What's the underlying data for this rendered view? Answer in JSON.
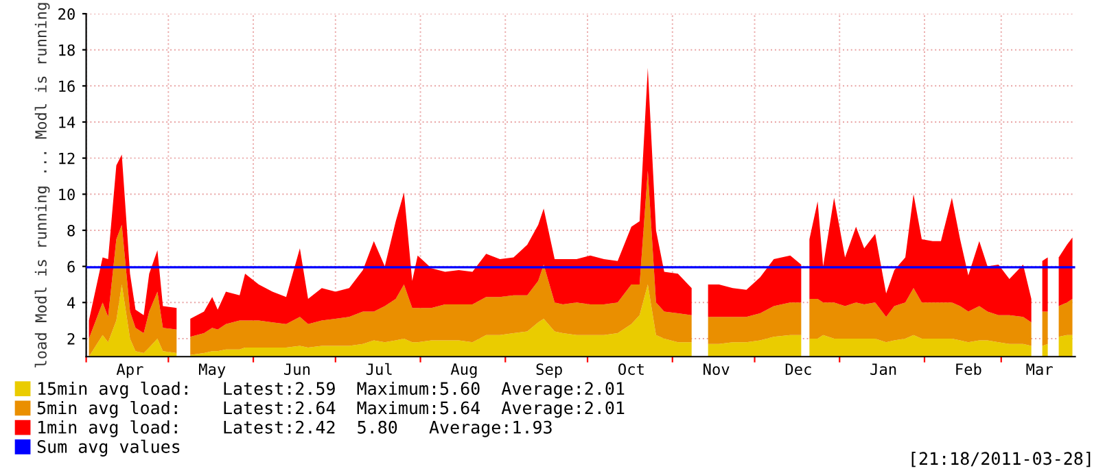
{
  "chart_data": {
    "type": "area",
    "stacked": true,
    "ylabel": "load Modl is running ... Modl is running",
    "x": [
      "2010-04-02",
      "2010-04-07",
      "2010-04-09",
      "2010-04-12",
      "2010-04-14",
      "2010-04-17",
      "2010-04-19",
      "2010-04-22",
      "2010-04-24",
      "2010-04-27",
      "2010-04-29",
      "2010-05-04",
      "2010-05-07",
      "2010-05-09",
      "2010-05-14",
      "2010-05-17",
      "2010-05-19",
      "2010-05-22",
      "2010-05-27",
      "2010-05-29",
      "2010-06-03",
      "2010-06-08",
      "2010-06-13",
      "2010-06-18",
      "2010-06-21",
      "2010-06-26",
      "2010-07-01",
      "2010-07-06",
      "2010-07-11",
      "2010-07-15",
      "2010-07-19",
      "2010-07-23",
      "2010-07-26",
      "2010-07-29",
      "2010-07-31",
      "2010-08-05",
      "2010-08-10",
      "2010-08-15",
      "2010-08-20",
      "2010-08-25",
      "2010-08-30",
      "2010-09-04",
      "2010-09-09",
      "2010-09-13",
      "2010-09-15",
      "2010-09-19",
      "2010-09-22",
      "2010-09-27",
      "2010-10-02",
      "2010-10-07",
      "2010-10-12",
      "2010-10-17",
      "2010-10-20",
      "2010-10-23",
      "2010-10-26",
      "2010-10-29",
      "2010-11-03",
      "2010-11-08",
      "2010-11-09",
      "2010-11-14",
      "2010-11-18",
      "2010-11-23",
      "2010-11-28",
      "2010-12-03",
      "2010-12-08",
      "2010-12-14",
      "2010-12-18",
      "2010-12-20",
      "2010-12-21",
      "2010-12-24",
      "2010-12-26",
      "2010-12-30",
      "2011-01-03",
      "2011-01-07",
      "2011-01-10",
      "2011-01-14",
      "2011-01-18",
      "2011-01-21",
      "2011-01-25",
      "2011-01-28",
      "2011-01-31",
      "2011-02-04",
      "2011-02-07",
      "2011-02-11",
      "2011-02-14",
      "2011-02-17",
      "2011-02-21",
      "2011-02-24",
      "2011-02-28",
      "2011-03-04",
      "2011-03-09",
      "2011-03-12",
      "2011-03-14",
      "2011-03-16",
      "2011-03-18",
      "2011-03-20",
      "2011-03-22",
      "2011-03-25",
      "2011-03-27"
    ],
    "series": [
      {
        "name": "15min avg load:   Latest:2.59  Maximum:5.60  Average:2.01",
        "color": "#eacc00",
        "values": [
          1.0,
          2.2,
          1.8,
          3.0,
          5.0,
          2.0,
          1.3,
          1.2,
          1.5,
          2.0,
          1.3,
          1.2,
          null,
          1.1,
          1.2,
          1.3,
          1.3,
          1.4,
          1.4,
          1.5,
          1.5,
          1.5,
          1.5,
          1.6,
          1.5,
          1.6,
          1.6,
          1.6,
          1.7,
          1.9,
          1.8,
          1.9,
          2.0,
          1.8,
          1.8,
          1.9,
          1.9,
          1.9,
          1.8,
          2.2,
          2.2,
          2.3,
          2.4,
          2.9,
          3.1,
          2.4,
          2.3,
          2.2,
          2.2,
          2.2,
          2.3,
          2.8,
          3.3,
          5.0,
          2.2,
          2.0,
          1.8,
          1.8,
          null,
          1.7,
          1.7,
          1.8,
          1.8,
          1.9,
          2.1,
          2.2,
          2.2,
          null,
          2.0,
          2.0,
          2.2,
          2.0,
          2.0,
          2.0,
          2.0,
          2.0,
          1.8,
          1.9,
          2.0,
          2.2,
          2.0,
          2.0,
          2.0,
          2.0,
          1.9,
          1.8,
          1.9,
          1.9,
          1.8,
          1.7,
          1.7,
          1.6,
          null,
          1.6,
          1.7,
          null,
          2.1,
          2.2,
          2.2
        ]
      },
      {
        "name": "5min avg load:    Latest:2.64  Maximum:5.64  Average:2.01",
        "color": "#ea8f00",
        "values": [
          1.0,
          1.8,
          1.4,
          4.5,
          3.3,
          1.5,
          1.3,
          1.1,
          2.0,
          2.6,
          1.3,
          1.3,
          null,
          1.0,
          1.1,
          1.3,
          1.2,
          1.4,
          1.6,
          1.5,
          1.5,
          1.4,
          1.3,
          1.6,
          1.3,
          1.4,
          1.5,
          1.6,
          1.8,
          1.6,
          2.0,
          2.3,
          3.0,
          1.9,
          1.9,
          1.8,
          2.0,
          2.0,
          2.1,
          2.1,
          2.1,
          2.1,
          2.0,
          2.3,
          3.0,
          1.6,
          1.6,
          1.8,
          1.7,
          1.7,
          1.7,
          2.2,
          1.7,
          6.3,
          1.8,
          1.5,
          1.6,
          1.5,
          null,
          1.5,
          1.5,
          1.4,
          1.4,
          1.5,
          1.7,
          1.8,
          1.8,
          null,
          2.2,
          2.2,
          1.8,
          2.0,
          1.8,
          2.0,
          1.9,
          2.0,
          1.4,
          1.9,
          2.0,
          2.6,
          2.0,
          2.0,
          2.0,
          2.0,
          1.9,
          1.7,
          1.9,
          1.6,
          1.5,
          1.6,
          1.5,
          1.3,
          null,
          1.9,
          1.8,
          null,
          1.7,
          1.8,
          2.0
        ]
      },
      {
        "name": "1min avg load:    Latest:2.42  5.80   Average:1.93",
        "color": "#ff0000",
        "values": [
          1.0,
          2.5,
          3.2,
          4.1,
          3.9,
          2.1,
          1.0,
          1.0,
          2.1,
          2.3,
          1.2,
          1.2,
          null,
          1.0,
          1.2,
          1.7,
          1.1,
          1.8,
          1.4,
          2.6,
          2.0,
          1.7,
          1.5,
          3.8,
          1.4,
          1.8,
          1.5,
          1.6,
          2.3,
          3.9,
          2.2,
          4.3,
          5.1,
          1.5,
          2.9,
          2.2,
          1.8,
          1.9,
          1.8,
          2.4,
          2.1,
          2.1,
          2.8,
          3.1,
          3.1,
          2.4,
          2.5,
          2.4,
          2.7,
          2.5,
          2.3,
          3.2,
          3.5,
          5.7,
          4.0,
          2.2,
          2.2,
          1.5,
          null,
          1.8,
          1.8,
          1.6,
          1.5,
          2.0,
          2.6,
          2.6,
          2.1,
          null,
          3.3,
          5.4,
          2.0,
          5.8,
          2.7,
          4.2,
          3.1,
          3.8,
          1.3,
          2.0,
          2.5,
          5.2,
          3.5,
          3.4,
          3.4,
          5.8,
          3.7,
          2.0,
          3.6,
          2.5,
          2.8,
          2.0,
          2.9,
          1.3,
          null,
          2.8,
          3.0,
          null,
          2.7,
          3.2,
          3.4
        ]
      }
    ],
    "ref_lines": [
      {
        "axis": "y",
        "value": 5.95,
        "label": "Sum avg values",
        "color": "#0000ff"
      }
    ],
    "xlim": [
      "2010-04-01",
      "2011-03-28"
    ],
    "xticks": [
      {
        "value": "2010-04-01",
        "label": null
      },
      {
        "value": "2010-04-17",
        "label": "Apr"
      },
      {
        "value": "2010-05-01",
        "label": null
      },
      {
        "value": "2010-05-17",
        "label": "May"
      },
      {
        "value": "2010-06-01",
        "label": null
      },
      {
        "value": "2010-06-17",
        "label": "Jun"
      },
      {
        "value": "2010-07-01",
        "label": null
      },
      {
        "value": "2010-07-17",
        "label": "Jul"
      },
      {
        "value": "2010-08-01",
        "label": null
      },
      {
        "value": "2010-08-17",
        "label": "Aug"
      },
      {
        "value": "2010-09-01",
        "label": null
      },
      {
        "value": "2010-09-17",
        "label": "Sep"
      },
      {
        "value": "2010-10-01",
        "label": null
      },
      {
        "value": "2010-10-17",
        "label": "Oct"
      },
      {
        "value": "2010-11-01",
        "label": null
      },
      {
        "value": "2010-11-17",
        "label": "Nov"
      },
      {
        "value": "2010-12-01",
        "label": null
      },
      {
        "value": "2010-12-17",
        "label": "Dec"
      },
      {
        "value": "2011-01-01",
        "label": null
      },
      {
        "value": "2011-01-17",
        "label": "Jan"
      },
      {
        "value": "2011-02-01",
        "label": null
      },
      {
        "value": "2011-02-17",
        "label": "Feb"
      },
      {
        "value": "2011-03-01",
        "label": null
      },
      {
        "value": "2011-03-15",
        "label": "Mar"
      }
    ],
    "ylim": [
      1,
      20
    ],
    "yticks": [
      2,
      4,
      6,
      8,
      10,
      12,
      14,
      16,
      18,
      20
    ],
    "grid": true,
    "legend": "bottom left",
    "annotations": [
      "[21:18/2011-03-28]"
    ]
  }
}
